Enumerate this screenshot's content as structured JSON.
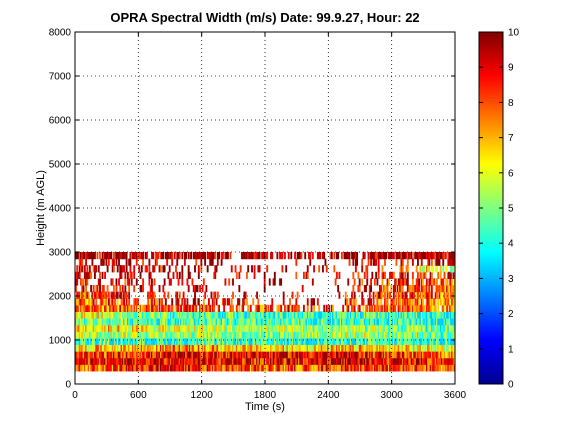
{
  "chart_data": {
    "type": "heatmap",
    "title": "OPRA Spectral Width (m/s)  Date: 99.9.27, Hour: 22",
    "xlabel": "Time (s)",
    "ylabel": "Height (m AGL)",
    "xlim": [
      0,
      3600
    ],
    "ylim": [
      0,
      8000
    ],
    "x_ticks": [
      0,
      600,
      1200,
      1800,
      2400,
      3000,
      3600
    ],
    "y_ticks": [
      0,
      1000,
      2000,
      3000,
      4000,
      5000,
      6000,
      7000,
      8000
    ],
    "grid": true,
    "colormap": "jet",
    "colorbar": {
      "range": [
        0,
        10
      ],
      "ticks": [
        0,
        1,
        2,
        3,
        4,
        5,
        6,
        7,
        8,
        9,
        10
      ]
    },
    "gate_height_m": 150,
    "rows": [
      {
        "height": 375,
        "profile": [
          [
            0,
            7.4
          ],
          [
            900,
            8.6
          ],
          [
            1800,
            7.8
          ],
          [
            2700,
            8.4
          ],
          [
            3600,
            7.6
          ]
        ],
        "coverage": [
          [
            0,
            1.0
          ],
          [
            3600,
            1.0
          ]
        ]
      },
      {
        "height": 525,
        "profile": [
          [
            0,
            8.4
          ],
          [
            900,
            9.0
          ],
          [
            1800,
            8.6
          ],
          [
            2700,
            9.2
          ],
          [
            3600,
            8.3
          ]
        ],
        "coverage": [
          [
            0,
            1.0
          ],
          [
            3600,
            1.0
          ]
        ]
      },
      {
        "height": 675,
        "profile": [
          [
            0,
            7.9
          ],
          [
            900,
            8.7
          ],
          [
            1800,
            9.0
          ],
          [
            2700,
            8.9
          ],
          [
            3600,
            7.4
          ]
        ],
        "coverage": [
          [
            0,
            1.0
          ],
          [
            3600,
            1.0
          ]
        ]
      },
      {
        "height": 825,
        "profile": [
          [
            0,
            6.6
          ],
          [
            900,
            7.4
          ],
          [
            1800,
            6.4
          ],
          [
            2700,
            6.8
          ],
          [
            3600,
            6.0
          ]
        ],
        "coverage": [
          [
            0,
            1.0
          ],
          [
            3600,
            1.0
          ]
        ]
      },
      {
        "height": 975,
        "profile": [
          [
            0,
            4.3
          ],
          [
            900,
            4.1
          ],
          [
            1800,
            4.0
          ],
          [
            2700,
            4.2
          ],
          [
            3600,
            4.0
          ]
        ],
        "coverage": [
          [
            0,
            1.0
          ],
          [
            3600,
            1.0
          ]
        ]
      },
      {
        "height": 1125,
        "profile": [
          [
            0,
            5.8
          ],
          [
            900,
            5.4
          ],
          [
            1800,
            5.0
          ],
          [
            2700,
            5.5
          ],
          [
            3600,
            4.8
          ]
        ],
        "coverage": [
          [
            0,
            1.0
          ],
          [
            3600,
            1.0
          ]
        ]
      },
      {
        "height": 1275,
        "profile": [
          [
            0,
            6.9
          ],
          [
            900,
            6.0
          ],
          [
            1800,
            5.3
          ],
          [
            2700,
            5.2
          ],
          [
            3600,
            4.6
          ]
        ],
        "coverage": [
          [
            0,
            1.0
          ],
          [
            3600,
            1.0
          ]
        ]
      },
      {
        "height": 1425,
        "profile": [
          [
            0,
            5.0
          ],
          [
            900,
            4.5
          ],
          [
            1800,
            4.2
          ],
          [
            2700,
            4.1
          ],
          [
            3600,
            4.0
          ]
        ],
        "coverage": [
          [
            0,
            1.0
          ],
          [
            3600,
            1.0
          ]
        ]
      },
      {
        "height": 1575,
        "profile": [
          [
            0,
            6.4
          ],
          [
            900,
            4.6
          ],
          [
            1800,
            4.4
          ],
          [
            2700,
            4.3
          ],
          [
            3600,
            4.2
          ]
        ],
        "coverage": [
          [
            0,
            1.0
          ],
          [
            3600,
            1.0
          ]
        ]
      },
      {
        "height": 1725,
        "profile": [
          [
            0,
            7.6
          ],
          [
            900,
            8.0
          ],
          [
            1800,
            8.2
          ],
          [
            2700,
            8.0
          ],
          [
            3600,
            7.2
          ]
        ],
        "coverage": [
          [
            0,
            0.97
          ],
          [
            600,
            0.8
          ],
          [
            1200,
            0.55
          ],
          [
            1800,
            0.5
          ],
          [
            2400,
            0.5
          ],
          [
            3000,
            0.8
          ],
          [
            3600,
            0.95
          ]
        ]
      },
      {
        "height": 1875,
        "profile": [
          [
            0,
            7.8
          ],
          [
            900,
            8.6
          ],
          [
            1800,
            8.8
          ],
          [
            2700,
            8.4
          ],
          [
            3600,
            7.4
          ]
        ],
        "coverage": [
          [
            0,
            0.9
          ],
          [
            600,
            0.55
          ],
          [
            1200,
            0.3
          ],
          [
            1800,
            0.22
          ],
          [
            2400,
            0.2
          ],
          [
            3000,
            0.7
          ],
          [
            3600,
            0.9
          ]
        ]
      },
      {
        "height": 2025,
        "profile": [
          [
            0,
            8.2
          ],
          [
            900,
            8.8
          ],
          [
            1800,
            9.0
          ],
          [
            2700,
            8.8
          ],
          [
            3600,
            7.6
          ]
        ],
        "coverage": [
          [
            0,
            0.8
          ],
          [
            600,
            0.3
          ],
          [
            1200,
            0.12
          ],
          [
            1800,
            0.08
          ],
          [
            2400,
            0.05
          ],
          [
            3000,
            0.55
          ],
          [
            3600,
            0.85
          ]
        ]
      },
      {
        "height": 2175,
        "profile": [
          [
            0,
            8.6
          ],
          [
            900,
            9.0
          ],
          [
            1800,
            9.2
          ],
          [
            2700,
            8.8
          ],
          [
            3600,
            7.8
          ]
        ],
        "coverage": [
          [
            0,
            0.7
          ],
          [
            600,
            0.2
          ],
          [
            1200,
            0.12
          ],
          [
            1800,
            0.06
          ],
          [
            2400,
            0.05
          ],
          [
            3000,
            0.6
          ],
          [
            3600,
            0.8
          ]
        ]
      },
      {
        "height": 2325,
        "profile": [
          [
            0,
            8.8
          ],
          [
            900,
            9.2
          ],
          [
            1800,
            9.2
          ],
          [
            2700,
            9.0
          ],
          [
            3600,
            8.0
          ]
        ],
        "coverage": [
          [
            0,
            0.65
          ],
          [
            600,
            0.2
          ],
          [
            1200,
            0.15
          ],
          [
            1800,
            0.1
          ],
          [
            2400,
            0.08
          ],
          [
            3000,
            0.55
          ],
          [
            3600,
            0.7
          ]
        ]
      },
      {
        "height": 2475,
        "profile": [
          [
            0,
            9.0
          ],
          [
            900,
            9.3
          ],
          [
            1800,
            9.4
          ],
          [
            2700,
            9.2
          ],
          [
            3600,
            8.6
          ]
        ],
        "coverage": [
          [
            0,
            0.6
          ],
          [
            600,
            0.22
          ],
          [
            1200,
            0.15
          ],
          [
            1800,
            0.12
          ],
          [
            2400,
            0.1
          ],
          [
            3000,
            0.45
          ],
          [
            3600,
            0.6
          ]
        ]
      },
      {
        "height": 2625,
        "profile": [
          [
            0,
            9.2
          ],
          [
            900,
            9.4
          ],
          [
            1800,
            9.5
          ],
          [
            2700,
            9.3
          ],
          [
            3600,
            5.0
          ]
        ],
        "coverage": [
          [
            0,
            0.5
          ],
          [
            600,
            0.3
          ],
          [
            1200,
            0.2
          ],
          [
            1800,
            0.12
          ],
          [
            2400,
            0.08
          ],
          [
            3000,
            0.3
          ],
          [
            3600,
            0.7
          ]
        ]
      },
      {
        "height": 2775,
        "profile": [
          [
            0,
            9.3
          ],
          [
            900,
            9.5
          ],
          [
            1800,
            9.6
          ],
          [
            2700,
            9.4
          ],
          [
            3600,
            9.2
          ]
        ],
        "coverage": [
          [
            0,
            0.3
          ],
          [
            600,
            0.25
          ],
          [
            1200,
            0.2
          ],
          [
            1800,
            0.12
          ],
          [
            2400,
            0.1
          ],
          [
            3000,
            0.25
          ],
          [
            3600,
            0.4
          ]
        ]
      },
      {
        "height": 2925,
        "profile": [
          [
            0,
            9.4
          ],
          [
            900,
            9.6
          ],
          [
            1800,
            9.6
          ],
          [
            2700,
            9.5
          ],
          [
            3600,
            9.4
          ]
        ],
        "coverage": [
          [
            0,
            0.95
          ],
          [
            600,
            0.9
          ],
          [
            1200,
            0.7
          ],
          [
            1800,
            0.6
          ],
          [
            2400,
            0.55
          ],
          [
            3000,
            0.9
          ],
          [
            3600,
            0.95
          ]
        ]
      }
    ]
  }
}
